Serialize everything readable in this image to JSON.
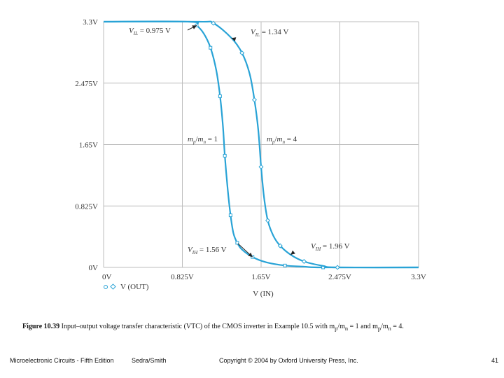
{
  "chart_data": {
    "type": "line",
    "x_ticks": [
      "0V",
      "0.825V",
      "1.65V",
      "2.475V",
      "3.3V"
    ],
    "y_ticks": [
      "0V",
      "0.825V",
      "1.65V",
      "2.475V",
      "3.3V"
    ],
    "xlabel": "V (IN)",
    "legend": "V (OUT)",
    "xlim": [
      0,
      3.3
    ],
    "ylim": [
      0,
      3.3
    ],
    "grid": true,
    "line_color": "#29a3d6",
    "series": [
      {
        "label_text": "m_p/m_n = 1",
        "x": [
          0.0,
          0.9,
          0.975,
          1.05,
          1.12,
          1.18,
          1.22,
          1.25,
          1.27,
          1.3,
          1.33,
          1.36,
          1.4,
          1.45,
          1.56,
          1.7,
          1.9,
          2.1,
          2.3,
          3.3
        ],
        "y": [
          3.3,
          3.3,
          3.25,
          3.14,
          2.95,
          2.65,
          2.3,
          1.9,
          1.5,
          1.05,
          0.7,
          0.46,
          0.33,
          0.24,
          0.14,
          0.07,
          0.025,
          0.01,
          0.0,
          0.0
        ]
      },
      {
        "label_text": "m_p/m_n = 4",
        "x": [
          0.0,
          1.0,
          1.15,
          1.34,
          1.45,
          1.53,
          1.58,
          1.62,
          1.65,
          1.68,
          1.72,
          1.78,
          1.85,
          1.96,
          2.1,
          2.3,
          2.45,
          3.3
        ],
        "y": [
          3.3,
          3.3,
          3.28,
          3.08,
          2.88,
          2.6,
          2.25,
          1.85,
          1.35,
          0.95,
          0.63,
          0.42,
          0.29,
          0.17,
          0.08,
          0.02,
          0.0,
          0.0
        ]
      }
    ],
    "annotations": [
      {
        "sym": "V",
        "sub": "IL",
        "rest": " = 0.975 V",
        "x": 0.975,
        "y": 3.25
      },
      {
        "sym": "V",
        "sub": "IL",
        "rest": " = 1.34 V",
        "x": 1.34,
        "y": 3.08
      },
      {
        "sym": "V",
        "sub": "IH",
        "rest": " = 1.56 V",
        "x": 1.56,
        "y": 0.14
      },
      {
        "sym": "V",
        "sub": "IH",
        "rest": " = 1.96 V",
        "x": 1.96,
        "y": 0.17
      }
    ],
    "curve_labels": [
      "m_p/m_n = 1",
      "m_p/m_n = 4"
    ]
  },
  "caption": {
    "bold": "Figure 10.39",
    "text": "  Input–output voltage transfer characteristic (VTC) of the CMOS inverter in Example 10.5 with m",
    "p1": "p",
    "mid1": "/m",
    "n1": "n",
    "mid2": " = 1 and m",
    "p2": "p",
    "mid3": "/m",
    "n2": "n",
    "end": " = 4."
  },
  "footer": {
    "book": "Microelectronic Circuits - Fifth Edition",
    "authors": "Sedra/Smith",
    "copyright": "Copyright © 2004 by Oxford University Press, Inc.",
    "page": "41"
  }
}
